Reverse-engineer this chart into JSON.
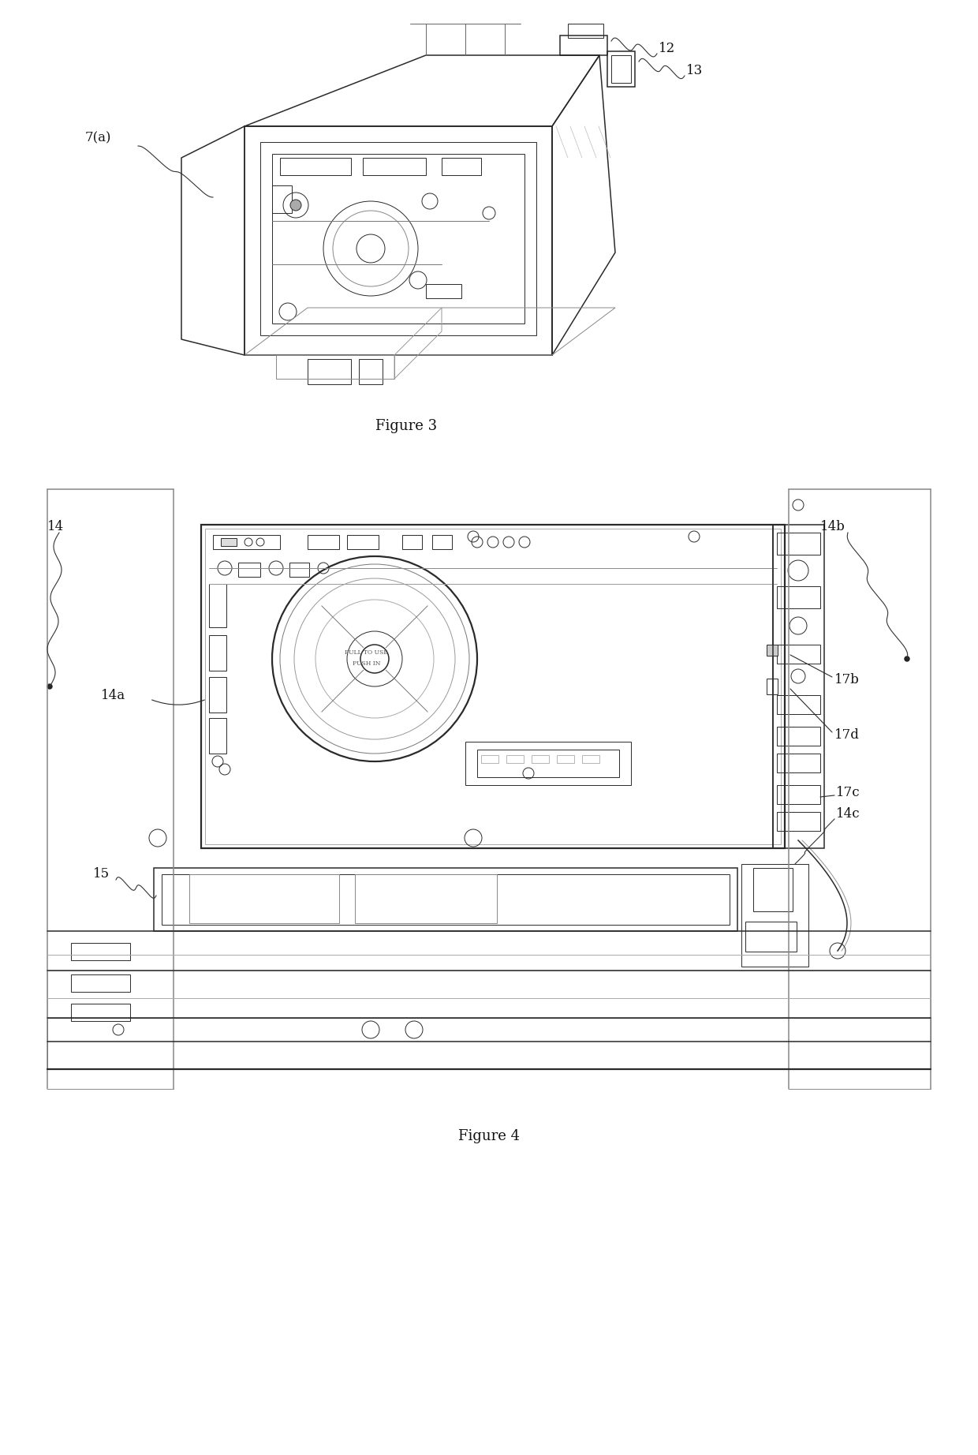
{
  "bg_color": "#ffffff",
  "fig_width": 12.4,
  "fig_height": 18.44,
  "fig3_caption": "Figure 3",
  "fig4_caption": "Figure 4",
  "labels": {
    "fig3_12": "12",
    "fig3_13": "13",
    "fig3_7a": "7(a)",
    "fig4_14": "14",
    "fig4_14a": "14a",
    "fig4_14b": "14b",
    "fig4_14c": "14c",
    "fig4_15": "15",
    "fig4_17b": "17b",
    "fig4_17c": "17c",
    "fig4_17d": "17d"
  },
  "line_color": "#2a2a2a",
  "light_gray": "#aaaaaa",
  "medium_gray": "#888888"
}
